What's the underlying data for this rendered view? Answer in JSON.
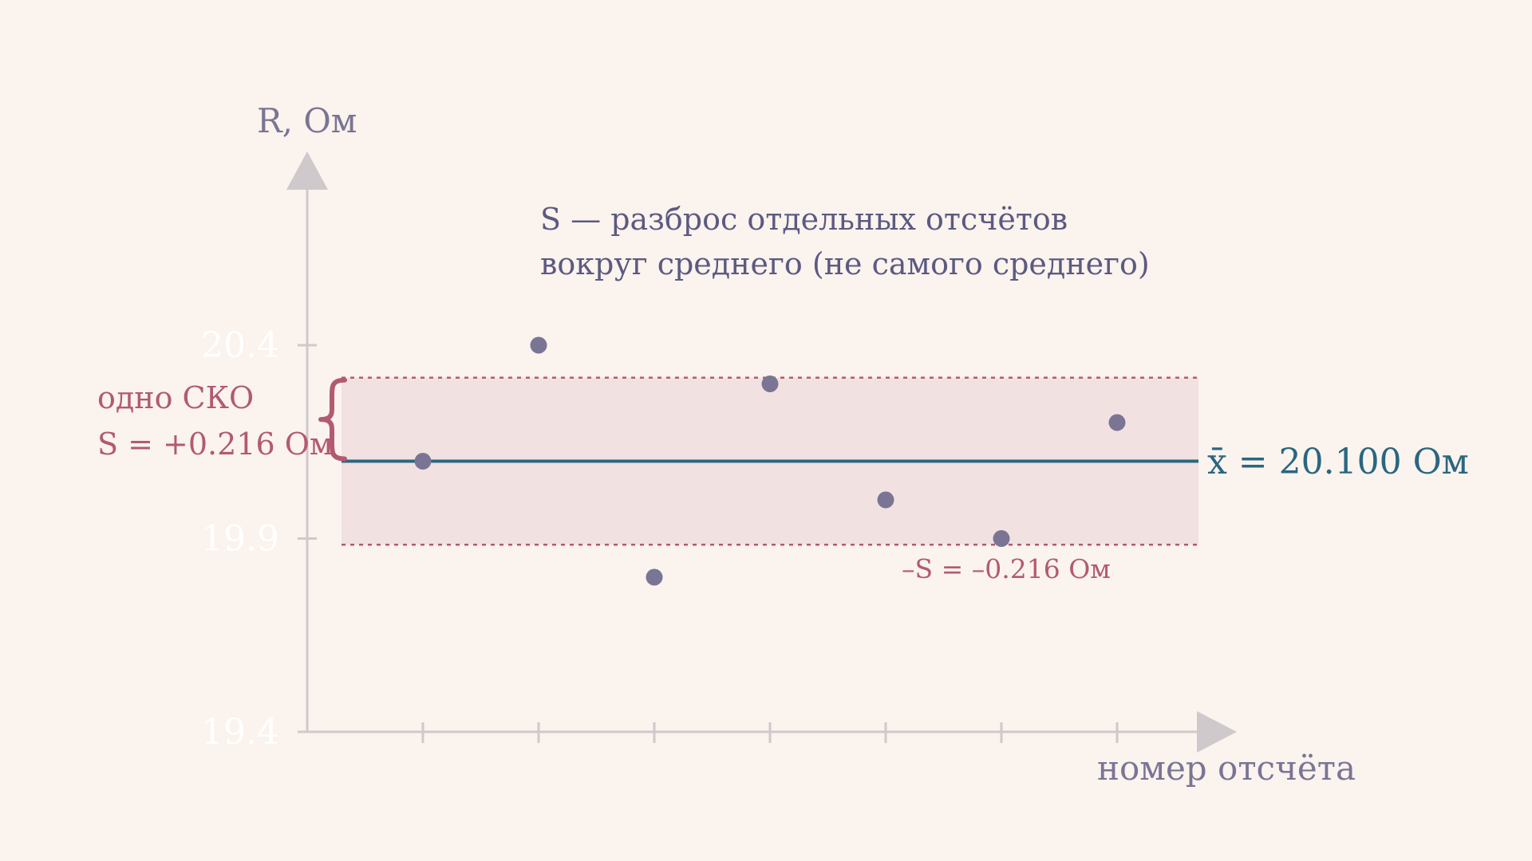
{
  "chart_data": {
    "type": "scatter",
    "xlabel": "номер отсчёта",
    "ylabel": "R, Ом",
    "ylim": [
      19.4,
      20.6
    ],
    "y_ticks": [
      "19.4",
      "19.9",
      "20.4"
    ],
    "x_tick_count": 7,
    "points": [
      {
        "x": 1,
        "y": 20.1
      },
      {
        "x": 2,
        "y": 20.4
      },
      {
        "x": 3,
        "y": 19.8
      },
      {
        "x": 4,
        "y": 20.3
      },
      {
        "x": 5,
        "y": 20.0
      },
      {
        "x": 6,
        "y": 19.9
      },
      {
        "x": 7,
        "y": 20.2
      }
    ],
    "mean": 20.1,
    "sd": 0.216,
    "mean_label": "x̄ = 20.100 Ом",
    "sd_label_line1": "одно СКО",
    "sd_label_line2": "S = +0.216 Ом",
    "sd_minus_label": "–S = –0.216 Ом",
    "annotation_line1": "S — разброс отдельных отсчётов",
    "annotation_line2": "вокруг среднего (не самого среднего)",
    "colors": {
      "background": "#faf3ee",
      "axis": "#cfc9cb",
      "points": "#7a7594",
      "mean_line": "#2a6680",
      "sd_band": "#f1e2e1",
      "sd_line": "#b25a72",
      "tick_label": "#ffffff",
      "annotation": "#5c5a80"
    },
    "grid": false,
    "legend": "none"
  }
}
